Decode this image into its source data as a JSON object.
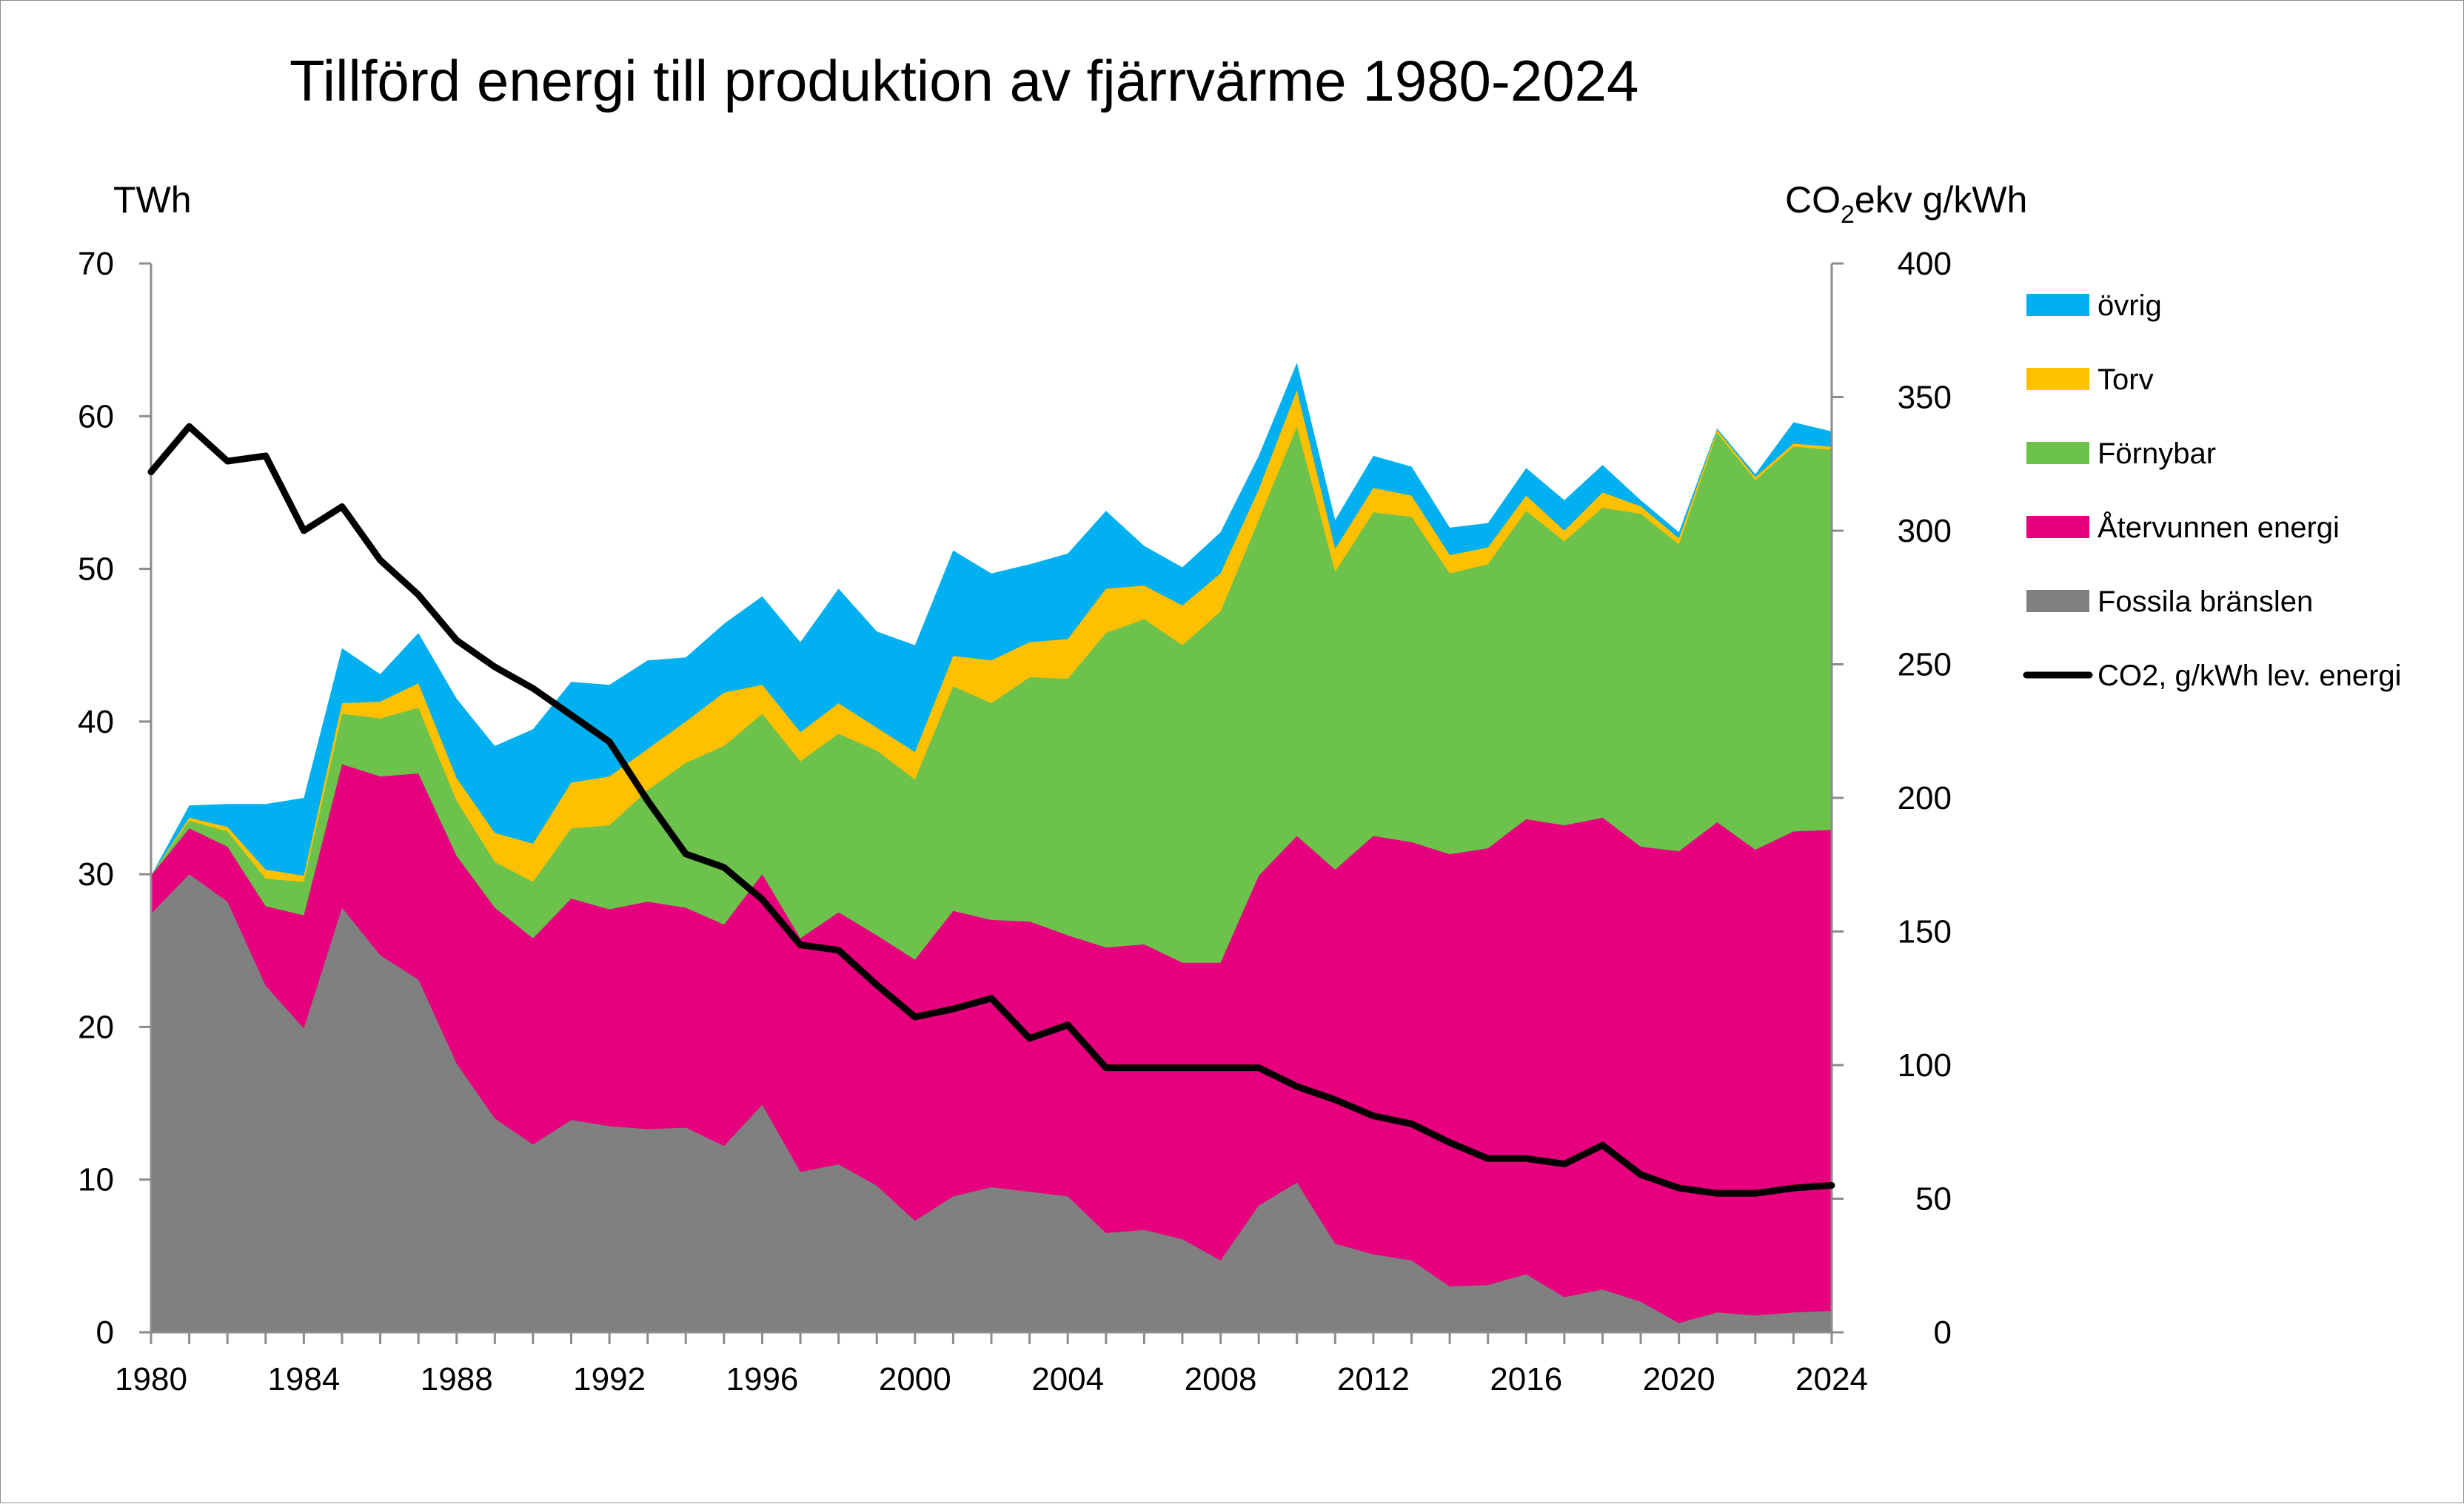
{
  "chart_data": {
    "type": "area",
    "title": "Tillförd energi till produktion av fjärrvärme 1980-2024",
    "left_axis": {
      "label": "TWh",
      "range": [
        0,
        70
      ],
      "ticks": [
        0,
        10,
        20,
        30,
        40,
        50,
        60,
        70
      ]
    },
    "right_axis": {
      "label_main": "CO",
      "label_sub": "2",
      "label_rest": "ekv  g/kWh",
      "range": [
        0,
        400
      ],
      "ticks": [
        0,
        50,
        100,
        150,
        200,
        250,
        300,
        350,
        400
      ]
    },
    "x_axis": {
      "range": [
        1980,
        2024
      ],
      "tick_labels": [
        "1980",
        "1984",
        "1988",
        "1992",
        "1996",
        "2000",
        "2004",
        "2008",
        "2012",
        "2016",
        "2020",
        "2024"
      ]
    },
    "years": [
      1980,
      1981,
      1982,
      1983,
      1984,
      1985,
      1986,
      1987,
      1988,
      1989,
      1990,
      1991,
      1992,
      1993,
      1994,
      1995,
      1996,
      1997,
      1998,
      1999,
      2000,
      2001,
      2002,
      2003,
      2004,
      2005,
      2006,
      2007,
      2008,
      2009,
      2010,
      2011,
      2012,
      2013,
      2014,
      2015,
      2016,
      2017,
      2018,
      2019,
      2020,
      2021,
      2022,
      2023,
      2024
    ],
    "legend_position": "right",
    "series": [
      {
        "name": "övrig",
        "color": "#00b0f0",
        "axis": "left",
        "kind": "area",
        "totals": [
          29.9,
          34.5,
          34.6,
          34.6,
          35.0,
          44.8,
          43.1,
          45.8,
          41.5,
          38.4,
          39.5,
          42.6,
          42.4,
          44.0,
          44.2,
          46.4,
          48.2,
          45.2,
          48.7,
          45.9,
          45.0,
          51.2,
          49.7,
          50.3,
          51.0,
          53.8,
          51.5,
          50.1,
          52.4,
          57.4,
          63.5,
          53.2,
          57.4,
          56.7,
          52.7,
          53.0,
          56.6,
          54.5,
          56.8,
          54.5,
          52.4,
          59.2,
          56.2,
          59.6,
          59.0
        ]
      },
      {
        "name": "Torv",
        "color": "#ffc000",
        "axis": "left",
        "kind": "area",
        "totals": [
          29.9,
          33.7,
          33.1,
          30.3,
          29.9,
          41.2,
          41.3,
          42.5,
          36.3,
          32.7,
          32.0,
          36.0,
          36.4,
          38.2,
          40.0,
          41.9,
          42.4,
          39.3,
          41.2,
          39.6,
          38.0,
          44.3,
          44.0,
          45.2,
          45.4,
          48.7,
          48.9,
          47.6,
          49.7,
          55.2,
          61.7,
          51.3,
          55.3,
          54.8,
          50.9,
          51.4,
          54.8,
          52.5,
          55.0,
          54.1,
          52.0,
          59.1,
          56.0,
          58.2,
          58.0
        ]
      },
      {
        "name": "Förnybar",
        "color": "#6cc24a",
        "axis": "left",
        "kind": "area",
        "totals": [
          29.9,
          33.5,
          32.8,
          29.7,
          29.5,
          40.5,
          40.2,
          40.9,
          34.8,
          30.8,
          29.5,
          33.0,
          33.2,
          35.5,
          37.3,
          38.4,
          40.5,
          37.4,
          39.2,
          38.1,
          36.2,
          42.3,
          41.2,
          42.9,
          42.8,
          45.8,
          46.7,
          45.0,
          47.2,
          53.2,
          59.3,
          49.8,
          53.7,
          53.4,
          49.7,
          50.3,
          53.8,
          51.8,
          54.0,
          53.6,
          51.6,
          58.9,
          55.8,
          58.0,
          57.8
        ]
      },
      {
        "name": "Återvunnen energi",
        "color": "#e6007e",
        "axis": "left",
        "kind": "area",
        "totals": [
          29.9,
          33.0,
          31.8,
          27.9,
          27.3,
          37.2,
          36.4,
          36.6,
          31.2,
          27.8,
          25.8,
          28.4,
          27.7,
          28.2,
          27.8,
          26.7,
          30.0,
          25.8,
          27.5,
          26.0,
          24.4,
          27.6,
          27.0,
          26.9,
          26.0,
          25.2,
          25.4,
          24.2,
          24.2,
          29.9,
          32.5,
          30.3,
          32.5,
          32.1,
          31.3,
          31.7,
          33.6,
          33.2,
          33.7,
          31.8,
          31.5,
          33.4,
          31.6,
          32.8,
          32.9
        ]
      },
      {
        "name": "Fossila bränslen",
        "color": "#808080",
        "axis": "left",
        "kind": "area",
        "totals": [
          27.4,
          30.0,
          28.2,
          22.7,
          19.9,
          27.8,
          24.7,
          23.1,
          17.6,
          14.0,
          12.3,
          13.9,
          13.5,
          13.3,
          13.4,
          12.2,
          14.9,
          10.5,
          11.0,
          9.6,
          7.3,
          8.9,
          9.5,
          9.2,
          8.9,
          6.5,
          6.7,
          6.1,
          4.7,
          8.3,
          9.8,
          5.8,
          5.1,
          4.7,
          3.0,
          3.1,
          3.8,
          2.3,
          2.8,
          2.0,
          0.6,
          1.3,
          1.1,
          1.3,
          1.4
        ]
      },
      {
        "name": "CO2, g/kWh lev. energi",
        "color": "#000000",
        "axis": "right",
        "kind": "line",
        "values": [
          322,
          339,
          326,
          328,
          300,
          309,
          289,
          276,
          259,
          249,
          241,
          231,
          221,
          199,
          179,
          174,
          162,
          145,
          143,
          130,
          118,
          121,
          125,
          110,
          115,
          99,
          99,
          99,
          99,
          99,
          92,
          87,
          81,
          78,
          71,
          65,
          65,
          63,
          70,
          59,
          54,
          52,
          52,
          54,
          55
        ]
      }
    ],
    "legend_order": [
      "övrig",
      "Torv",
      "Förnybar",
      "Återvunnen energi",
      "Fossila bränslen",
      "CO2, g/kWh lev. energi"
    ]
  }
}
